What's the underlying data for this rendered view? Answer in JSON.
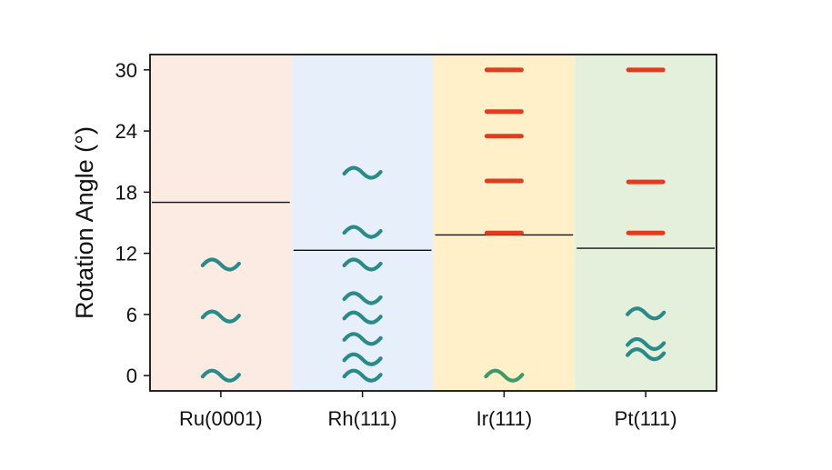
{
  "chart_data": {
    "type": "scatter",
    "ylabel": "Rotation Angle (°)",
    "ylim": [
      -1.5,
      31.5
    ],
    "y_ticks": [
      "0",
      "6",
      "12",
      "18",
      "24",
      "30"
    ],
    "y_tick_values": [
      0,
      6,
      12,
      18,
      24,
      30
    ],
    "grid": false,
    "categories": [
      {
        "label": "Ru(0001)",
        "background": "#fcebe2",
        "threshold": 17.0,
        "wavy_angles": [
          0,
          5.8,
          10.9
        ],
        "dash_angles": []
      },
      {
        "label": "Rh(111)",
        "background": "#e7f0fa",
        "threshold": 12.3,
        "wavy_angles": [
          0,
          1.6,
          3.6,
          5.7,
          7.6,
          10.9,
          14.1,
          19.9
        ],
        "dash_angles": []
      },
      {
        "label": "Ir(111)",
        "background": "#fff0c9",
        "threshold": 13.8,
        "wavy_angles": [
          0
        ],
        "dash_angles": [
          14.0,
          19.1,
          23.5,
          25.9,
          30.0
        ]
      },
      {
        "label": "Pt(111)",
        "background": "#e4efdc",
        "threshold": 12.5,
        "wavy_angles": [
          2.1,
          3.1,
          6.1
        ],
        "dash_angles": [
          14.0,
          19.0,
          30.0
        ]
      }
    ],
    "colors": {
      "wavy_default": "#2a8a8a",
      "wavy_ir": "#3e9a6a",
      "dash": "#e03c1e",
      "threshold_line": "#111111"
    }
  }
}
